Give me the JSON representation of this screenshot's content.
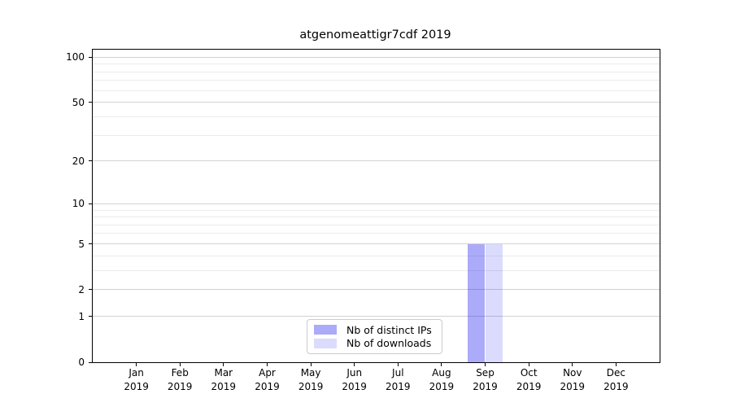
{
  "chart_data": {
    "type": "bar",
    "title": "atgenomeattigr7cdf 2019",
    "categories": [
      "Jan 2019",
      "Feb 2019",
      "Mar 2019",
      "Apr 2019",
      "May 2019",
      "Jun 2019",
      "Jul 2019",
      "Aug 2019",
      "Sep 2019",
      "Oct 2019",
      "Nov 2019",
      "Dec 2019"
    ],
    "series": [
      {
        "name": "Nb of distinct IPs",
        "color": "#aaaaf5",
        "rgba": "rgba(0,0,238,0.33)",
        "values": [
          0,
          0,
          0,
          0,
          0,
          0,
          0,
          0,
          5,
          0,
          0,
          0
        ]
      },
      {
        "name": "Nb of downloads",
        "color": "#dbdbf8",
        "rgba": "rgba(0,0,238,0.14)",
        "values": [
          0,
          0,
          0,
          0,
          0,
          0,
          0,
          0,
          5,
          0,
          0,
          0
        ]
      }
    ],
    "xlabel": "",
    "ylabel": "",
    "y_scale": "log1p",
    "y_max": 112,
    "y_ticks": [
      0,
      1,
      2,
      5,
      10,
      20,
      50,
      100
    ],
    "y_minor_ticks": [
      3,
      4,
      6,
      7,
      8,
      9,
      30,
      40,
      60,
      70,
      80,
      90
    ],
    "grid": "horizontal major and minor, no vertical",
    "legend_position": "lower center inside plot"
  },
  "colors": {
    "bar_distinct_ips": "#aaaaf5",
    "bar_downloads": "#dbdbf8",
    "grid_major": "#d2d2d2",
    "grid_minor": "#ebebeb",
    "axis": "#000000",
    "background": "#ffffff",
    "legend_border": "#cccccc"
  }
}
